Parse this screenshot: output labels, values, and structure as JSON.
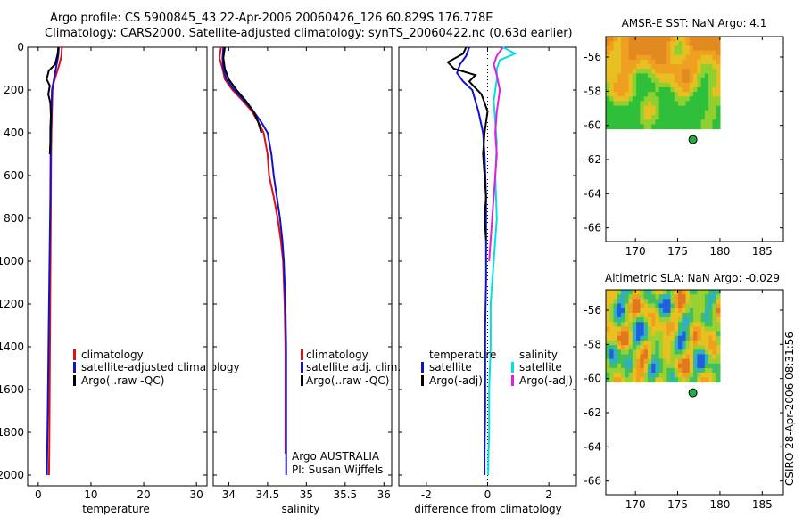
{
  "title_line1": "Argo profile: CS 5900845_43 22-Apr-2006 20060426_126 60.829S 176.778E",
  "title_line2": "Climatology: CARS2000. Satellite-adjusted climatology: synTS_20060422.nc (0.63d earlier)",
  "footer_stamp": "CSIRO 28-Apr-2006 08:31:56",
  "colors": {
    "red": "#e01010",
    "blue": "#1010d0",
    "black": "#000000",
    "cyan": "#00e0e0",
    "magenta": "#e020e0"
  },
  "chart_data": [
    {
      "type": "line",
      "id": "temperature",
      "xlabel": "temperature",
      "xlim": [
        -2,
        32
      ],
      "xticks": [
        0,
        10,
        20,
        30
      ],
      "ylim": [
        2050,
        0
      ],
      "yticks": [
        0,
        200,
        400,
        600,
        800,
        1000,
        1200,
        1400,
        1600,
        1800,
        2000
      ],
      "legend": [
        "climatology",
        "satellite-adjusted climatology",
        "Argo(..raw -QC)"
      ],
      "series": [
        {
          "name": "climatology",
          "color": "red",
          "x": [
            4.5,
            4.4,
            4.0,
            3.5,
            3.0,
            2.7,
            2.6,
            2.5,
            2.45,
            2.4,
            2.35,
            2.3,
            2.25,
            2.2,
            2.15,
            2.1,
            2.05
          ],
          "y": [
            0,
            40,
            80,
            120,
            160,
            200,
            300,
            400,
            500,
            700,
            900,
            1100,
            1300,
            1500,
            1700,
            1900,
            2000
          ]
        },
        {
          "name": "satellite-adjusted climatology",
          "color": "blue",
          "x": [
            3.9,
            3.8,
            3.5,
            3.2,
            2.9,
            2.6,
            2.5,
            2.4,
            2.35,
            2.3,
            2.2,
            2.1,
            2.0,
            1.9,
            1.8,
            1.7,
            1.65
          ],
          "y": [
            0,
            40,
            80,
            120,
            160,
            200,
            300,
            400,
            500,
            700,
            900,
            1100,
            1300,
            1500,
            1700,
            1900,
            2000
          ]
        },
        {
          "name": "Argo(..raw -QC)",
          "color": "black",
          "x": [
            3.8,
            3.7,
            3.2,
            2.0,
            1.6,
            2.2,
            1.9,
            2.3,
            2.4,
            2.3,
            2.3,
            2.2
          ],
          "y": [
            0,
            30,
            80,
            110,
            150,
            180,
            220,
            260,
            320,
            380,
            440,
            500
          ]
        }
      ]
    },
    {
      "type": "line",
      "id": "salinity",
      "xlabel": "salinity",
      "xlim": [
        33.8,
        36.1
      ],
      "xticks": [
        34,
        34.5,
        35,
        35.5,
        36
      ],
      "xticklabels": [
        "34",
        "34.5",
        "35",
        "35.5",
        "36"
      ],
      "ylim": [
        2050,
        0
      ],
      "legend": [
        "climatology",
        "satellite adj. clim.",
        "Argo(..raw -QC)"
      ],
      "annotations": [
        "Argo AUSTRALIA",
        "PI: Susan Wijffels"
      ],
      "series": [
        {
          "name": "climatology",
          "color": "red",
          "x": [
            33.9,
            33.88,
            33.92,
            33.95,
            34.05,
            34.18,
            34.3,
            34.38,
            34.45,
            34.5,
            34.52,
            34.58,
            34.63,
            34.67,
            34.7,
            34.72,
            34.73,
            34.73,
            34.73
          ],
          "y": [
            0,
            50,
            100,
            150,
            200,
            250,
            300,
            350,
            400,
            500,
            600,
            700,
            800,
            900,
            1000,
            1200,
            1400,
            1600,
            1900
          ]
        },
        {
          "name": "satellite adj. clim.",
          "color": "blue",
          "x": [
            33.93,
            33.92,
            33.93,
            33.97,
            34.07,
            34.2,
            34.32,
            34.42,
            34.5,
            34.55,
            34.58,
            34.62,
            34.66,
            34.69,
            34.71,
            34.73,
            34.74,
            34.74,
            34.74
          ],
          "y": [
            0,
            50,
            100,
            150,
            200,
            250,
            300,
            350,
            400,
            500,
            600,
            700,
            800,
            900,
            1000,
            1200,
            1400,
            1600,
            2000
          ]
        },
        {
          "name": "Argo(..raw -QC)",
          "color": "black",
          "x": [
            33.95,
            33.93,
            33.95,
            34.0,
            34.1,
            34.22,
            34.32,
            34.38,
            34.42
          ],
          "y": [
            0,
            50,
            100,
            150,
            200,
            250,
            300,
            350,
            400
          ]
        }
      ]
    },
    {
      "type": "line",
      "id": "difference",
      "xlabel": "difference from climatology",
      "xlim": [
        -2.9,
        2.9
      ],
      "xticks": [
        -2,
        0,
        2
      ],
      "ylim": [
        2050,
        0
      ],
      "legend_headers": [
        "temperature",
        "salinity"
      ],
      "legend": [
        "satellite",
        "Argo(-adj)",
        "satellite",
        "Argo(-adj)"
      ],
      "series": [
        {
          "name": "temperature satellite",
          "color": "blue",
          "x": [
            -0.6,
            -0.7,
            -0.9,
            -1.0,
            -0.8,
            -0.5,
            -0.3,
            -0.15,
            -0.1,
            -0.05,
            -0.05,
            -0.05,
            -0.08,
            -0.08,
            -0.08,
            -0.1,
            -0.1
          ],
          "y": [
            0,
            40,
            80,
            120,
            160,
            200,
            300,
            400,
            500,
            700,
            900,
            1100,
            1300,
            1500,
            1700,
            1900,
            2000
          ]
        },
        {
          "name": "temperature Argo(-adj)",
          "color": "black",
          "x": [
            -0.7,
            -0.8,
            -1.3,
            -1.1,
            -0.4,
            -0.6,
            -0.2,
            -0.1,
            0.0,
            -0.1,
            -0.15,
            -0.1,
            -0.05,
            -0.1,
            -0.05
          ],
          "y": [
            0,
            30,
            70,
            100,
            130,
            160,
            220,
            260,
            300,
            400,
            500,
            600,
            700,
            800,
            900
          ]
        },
        {
          "name": "salinity satellite",
          "color": "cyan",
          "x": [
            0.5,
            0.9,
            0.4,
            0.3,
            0.3,
            0.2,
            0.25,
            0.3,
            0.25,
            0.3,
            0.2,
            0.15,
            0.1,
            0.1,
            0.05,
            0.05,
            0.03,
            0.02
          ],
          "y": [
            0,
            30,
            60,
            100,
            150,
            250,
            350,
            450,
            600,
            800,
            1000,
            1100,
            1200,
            1400,
            1600,
            1800,
            1900,
            2000
          ]
        },
        {
          "name": "salinity Argo(-adj)",
          "color": "magenta",
          "x": [
            0.5,
            0.3,
            0.2,
            0.3,
            0.4,
            0.3,
            0.25,
            0.3,
            0.25,
            0.15,
            0.05
          ],
          "y": [
            0,
            40,
            80,
            130,
            200,
            300,
            400,
            500,
            600,
            800,
            1000
          ]
        }
      ]
    },
    {
      "type": "heatmap",
      "id": "sst_map",
      "title": "AMSR-E SST: NaN Argo: 4.1",
      "xlim": [
        166.5,
        187.5
      ],
      "ylim": [
        -66.8,
        -54.8
      ],
      "xticks": [
        170,
        175,
        180,
        185
      ],
      "yticks": [
        -56,
        -58,
        -60,
        -62,
        -64,
        -66
      ],
      "yticklabels": [
        "-56",
        "-58",
        "-60",
        "-62",
        "-64",
        "-66"
      ],
      "argo_point": [
        176.8,
        -60.83
      ],
      "data_extent": {
        "lon": [
          166.5,
          180
        ],
        "lat": [
          -60.2,
          -54.8
        ]
      }
    },
    {
      "type": "heatmap",
      "id": "sla_map",
      "title": "Altimetric SLA: NaN Argo: -0.029",
      "xlim": [
        166.5,
        187.5
      ],
      "ylim": [
        -66.8,
        -54.8
      ],
      "xticks": [
        170,
        175,
        180,
        185
      ],
      "yticks": [
        -56,
        -58,
        -60,
        -62,
        -64,
        -66
      ],
      "yticklabels": [
        "-56",
        "-58",
        "-60",
        "-62",
        "-64",
        "-66"
      ],
      "argo_point": [
        176.8,
        -60.83
      ],
      "data_extent": {
        "lon": [
          166.5,
          180
        ],
        "lat": [
          -60.2,
          -54.8
        ]
      }
    }
  ]
}
